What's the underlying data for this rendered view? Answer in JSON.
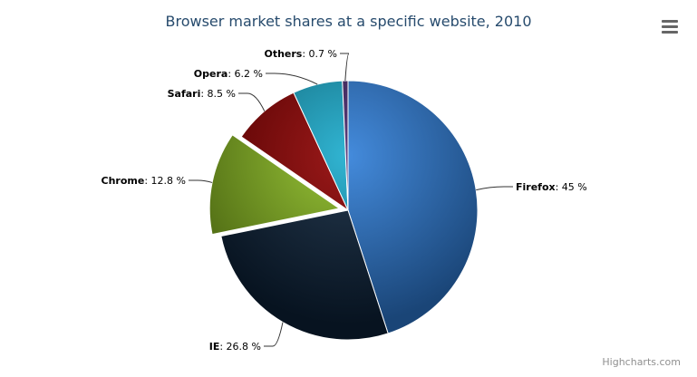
{
  "chart_data": {
    "type": "pie",
    "title": "Browser market shares at a specific website, 2010",
    "unit": "%",
    "series": [
      {
        "data": [
          {
            "name": "Firefox",
            "value": 45.0,
            "color": "#2f7ed8",
            "sliced": false
          },
          {
            "name": "IE",
            "value": 26.8,
            "color": "#0d233a",
            "sliced": false
          },
          {
            "name": "Chrome",
            "value": 12.8,
            "color": "#8bbc21",
            "sliced": true
          },
          {
            "name": "Safari",
            "value": 8.5,
            "color": "#910000",
            "sliced": false
          },
          {
            "name": "Opera",
            "value": 6.2,
            "color": "#1aadce",
            "sliced": false
          },
          {
            "name": "Others",
            "value": 0.7,
            "color": "#492970",
            "sliced": false
          }
        ]
      }
    ]
  },
  "menu_icon": "hamburger-menu-icon",
  "credits": "Highcharts.com"
}
